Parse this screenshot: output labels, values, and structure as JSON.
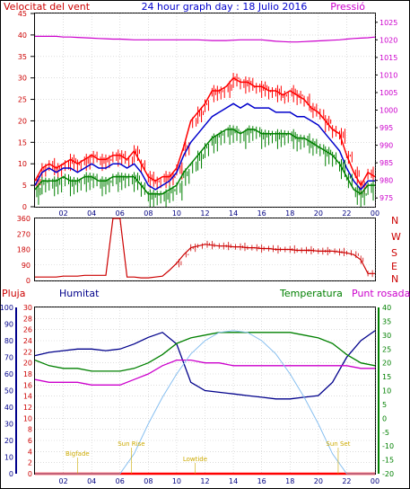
{
  "header": {
    "title": "24 hour graph day : 18 Julio 2016",
    "left_label": "Velocitat del vent",
    "right_label": "Pressió"
  },
  "direction": {
    "labels": [
      "N",
      "W",
      "S",
      "E",
      "N"
    ]
  },
  "weather_panel": {
    "rain_label": "Pluja",
    "hum_label": "Humitat",
    "temp_label": "Temperatura",
    "dew_label": "Punt rosada",
    "moon_labels": [
      {
        "text": "Bigfade",
        "hour": 3
      },
      {
        "text": "Sun Rise",
        "hour": 6.8
      },
      {
        "text": "Lowtide",
        "hour": 11.3
      },
      {
        "text": "Sun Set",
        "hour": 21.4
      }
    ]
  },
  "colors": {
    "gust": "#ff0000",
    "wind": "#0000cc",
    "avg": "#008000",
    "pressure": "#cc00cc",
    "direction": "#cc0000",
    "humidity": "#00008b",
    "temperature": "#008000",
    "dewpoint": "#cc00cc",
    "solar": "#87bff0",
    "rain": "#ff0000",
    "labels_yellow": "#ccaa00"
  },
  "chart_data": [
    {
      "type": "line",
      "title": "24 hour graph day : 18 Julio 2016",
      "x_ticks": [
        "02",
        "04",
        "06",
        "08",
        "10",
        "12",
        "14",
        "16",
        "18",
        "20",
        "22",
        "00"
      ],
      "left_axis": {
        "label": "Velocitat del vent",
        "ticks": [
          0,
          5,
          10,
          15,
          20,
          25,
          30,
          35,
          40,
          45
        ],
        "ylim": [
          0,
          45
        ]
      },
      "right_axis": {
        "label": "Pressió",
        "ticks": [
          975,
          980,
          985,
          990,
          995,
          1000,
          1005,
          1010,
          1015,
          1020,
          1025
        ],
        "ylim": [
          972.5,
          1027.5
        ]
      },
      "grid": true,
      "x": [
        0,
        0.5,
        1,
        1.5,
        2,
        2.5,
        3,
        3.5,
        4,
        4.5,
        5,
        5.5,
        6,
        6.5,
        7,
        7.5,
        8,
        8.5,
        9,
        9.5,
        10,
        10.5,
        11,
        11.5,
        12,
        12.5,
        13,
        13.5,
        14,
        14.5,
        15,
        15.5,
        16,
        16.5,
        17,
        17.5,
        18,
        18.5,
        19,
        19.5,
        20,
        20.5,
        21,
        21.5,
        22,
        22.5,
        23,
        23.5,
        24
      ],
      "series": [
        {
          "name": "gust",
          "axis": "left",
          "values": [
            6,
            9,
            10,
            9,
            10,
            11,
            10,
            11,
            12,
            11,
            11,
            12,
            12,
            11,
            13,
            10,
            7,
            6,
            7,
            7,
            9,
            14,
            20,
            22,
            24,
            27,
            27,
            28,
            30,
            29,
            29,
            28,
            28,
            27,
            27,
            26,
            27,
            26,
            25,
            23,
            22,
            20,
            18,
            17,
            12,
            8,
            5,
            8,
            7
          ]
        },
        {
          "name": "wind",
          "axis": "left",
          "values": [
            5,
            8,
            9,
            8,
            9,
            9,
            8,
            9,
            10,
            9,
            9,
            10,
            10,
            9,
            10,
            8,
            5,
            4,
            5,
            6,
            8,
            12,
            15,
            17,
            19,
            21,
            22,
            23,
            24,
            23,
            24,
            23,
            23,
            23,
            22,
            22,
            22,
            21,
            21,
            20,
            19,
            17,
            15,
            13,
            9,
            6,
            4,
            6,
            6
          ]
        },
        {
          "name": "avg",
          "axis": "left",
          "values": [
            4,
            6,
            6,
            6,
            7,
            6,
            6,
            7,
            7,
            6,
            6,
            7,
            7,
            7,
            7,
            5,
            3,
            3,
            3,
            4,
            5,
            8,
            10,
            12,
            14,
            16,
            17,
            18,
            18,
            17,
            18,
            18,
            17,
            17,
            17,
            17,
            17,
            16,
            16,
            15,
            14,
            13,
            12,
            10,
            7,
            4,
            3,
            5,
            5
          ]
        },
        {
          "name": "pressure",
          "axis": "right",
          "values": [
            1021,
            1021,
            1021,
            1021,
            1020.8,
            1020.8,
            1020.7,
            1020.6,
            1020.5,
            1020.4,
            1020.3,
            1020.2,
            1020.2,
            1020.1,
            1020,
            1020,
            1020,
            1020,
            1020,
            1020,
            1020,
            1020,
            1020,
            1020,
            1019.9,
            1019.8,
            1019.8,
            1019.8,
            1019.9,
            1020,
            1020,
            1020,
            1020,
            1019.8,
            1019.6,
            1019.5,
            1019.4,
            1019.4,
            1019.5,
            1019.6,
            1019.7,
            1019.8,
            1019.9,
            1020,
            1020.2,
            1020.4,
            1020.5,
            1020.6,
            1020.8
          ]
        }
      ]
    },
    {
      "type": "line",
      "title": "",
      "y_ticks": [
        0,
        90,
        180,
        270,
        360
      ],
      "ylim": [
        0,
        360
      ],
      "x_ticks": [],
      "grid": true,
      "x": [
        0,
        0.5,
        1,
        1.5,
        2,
        2.5,
        3,
        3.5,
        4,
        4.5,
        5,
        5.5,
        6,
        6.5,
        7,
        7.5,
        8,
        8.5,
        9,
        9.5,
        10,
        10.5,
        11,
        11.5,
        12,
        12.5,
        13,
        13.5,
        14,
        14.5,
        15,
        15.5,
        16,
        16.5,
        17,
        17.5,
        18,
        18.5,
        19,
        19.5,
        20,
        20.5,
        21,
        21.5,
        22,
        22.5,
        23,
        23.5,
        24
      ],
      "series": [
        {
          "name": "direction",
          "values": [
            20,
            20,
            20,
            20,
            25,
            25,
            25,
            30,
            30,
            30,
            30,
            360,
            360,
            20,
            20,
            15,
            15,
            20,
            25,
            60,
            100,
            150,
            190,
            200,
            210,
            205,
            200,
            200,
            195,
            195,
            190,
            190,
            185,
            185,
            180,
            180,
            180,
            175,
            175,
            175,
            170,
            170,
            170,
            165,
            160,
            150,
            120,
            40,
            40
          ]
        }
      ]
    },
    {
      "type": "line",
      "title": "",
      "x_ticks": [
        "02",
        "04",
        "06",
        "08",
        "10",
        "12",
        "14",
        "16",
        "18",
        "20",
        "22",
        "00"
      ],
      "humidity_axis": {
        "ticks": [
          0,
          10,
          20,
          30,
          40,
          50,
          60,
          70,
          80,
          90,
          100
        ],
        "ylim": [
          0,
          100
        ]
      },
      "rain_axis": {
        "ticks": [
          0,
          2,
          4,
          6,
          8,
          10,
          12,
          14,
          16,
          18,
          20,
          22,
          24,
          26,
          28,
          30
        ],
        "ylim": [
          0,
          30
        ]
      },
      "temp_axis": {
        "ticks": [
          -20,
          -15,
          -10,
          -5,
          0,
          5,
          10,
          15,
          20,
          25,
          30,
          35,
          40
        ],
        "ylim": [
          -20,
          40
        ]
      },
      "grid": true,
      "x": [
        0,
        1,
        2,
        3,
        4,
        5,
        6,
        7,
        8,
        9,
        10,
        11,
        12,
        13,
        14,
        15,
        16,
        17,
        18,
        19,
        20,
        21,
        22,
        23,
        24
      ],
      "series": [
        {
          "name": "humidity",
          "axis": "humidity",
          "values": [
            71,
            73,
            74,
            75,
            75,
            74,
            75,
            78,
            82,
            85,
            78,
            55,
            50,
            49,
            48,
            47,
            46,
            45,
            45,
            46,
            47,
            55,
            70,
            80,
            86
          ]
        },
        {
          "name": "temperature",
          "axis": "temp",
          "values": [
            21,
            19,
            18,
            18,
            17,
            17,
            17,
            18,
            20,
            23,
            27,
            29,
            30,
            31,
            31,
            31,
            31,
            31,
            31,
            30,
            29,
            27,
            23,
            20,
            19
          ]
        },
        {
          "name": "dewpoint",
          "axis": "temp",
          "values": [
            14,
            13,
            13,
            13,
            12,
            12,
            12,
            14,
            16,
            19,
            21,
            21,
            20,
            20,
            19,
            19,
            19,
            19,
            19,
            19,
            19,
            19,
            19,
            18,
            18
          ]
        },
        {
          "name": "rain",
          "axis": "rain",
          "values": [
            0,
            0,
            0,
            0,
            0,
            0,
            0,
            0,
            0,
            0,
            0,
            0,
            0,
            0,
            0,
            0,
            0,
            0,
            0,
            0,
            0,
            0,
            0,
            0,
            0
          ]
        },
        {
          "name": "solar",
          "axis": "humidity",
          "values": [
            0,
            0,
            0,
            0,
            0,
            0,
            0,
            12,
            30,
            46,
            60,
            72,
            80,
            85,
            86,
            85,
            80,
            72,
            60,
            46,
            30,
            12,
            0,
            0,
            0
          ]
        }
      ]
    }
  ]
}
